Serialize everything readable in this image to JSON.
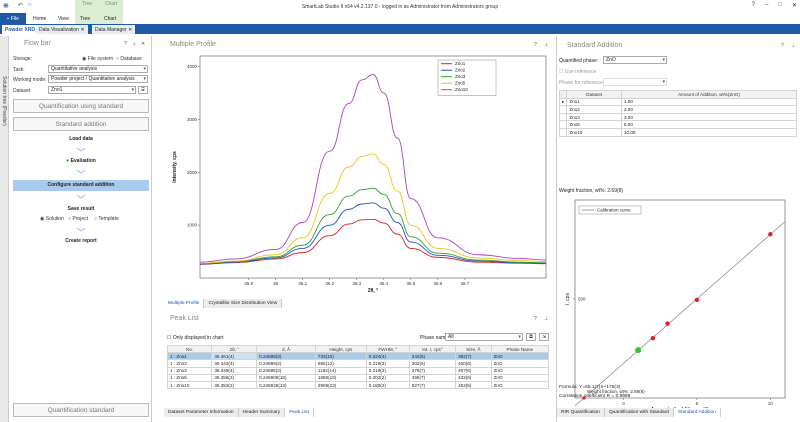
{
  "app": {
    "title": "SmartLab Studio II x64 v4.2.137.0 - logged in as Administrator from Administrators group"
  },
  "ribbon": {
    "file": "File",
    "tabs": [
      "Home",
      "View",
      "Tree",
      "Chart"
    ]
  },
  "doc_tabs": [
    "Powder XRD",
    "Data Visualization",
    "Data Manager"
  ],
  "sidebar_strip": {
    "label": "Solution tree (Powder)"
  },
  "flowbar": {
    "title": "Flow bar",
    "storage_label": "Storage:",
    "storage_options": [
      "File system",
      "Database"
    ],
    "task_label": "Task:",
    "task_value": "Quantitative analysis",
    "working_label": "Working mode:",
    "working_value": "Powder project / Quantitative analysis",
    "dataset_label": "Dataset",
    "dataset_value": "Zno1",
    "btn_quant_std": "Quantification using standard",
    "btn_std_add": "Standard addition",
    "steps": {
      "load": "Load data",
      "eval": "Evaluation",
      "config": "Configure standard addition",
      "save": "Save result",
      "save_options": [
        "Solution",
        "Project",
        "Template"
      ],
      "report": "Create report"
    },
    "btn_quant_standard": "Quantification standard"
  },
  "multi_profile": {
    "title": "Multiple Profile",
    "tabs": [
      "Multiple Profile",
      "Crystallite Size Distribution View"
    ]
  },
  "peak_list": {
    "title": "Peak List",
    "only_displayed": "Only displayed in chart",
    "phase_label": "Phase name:",
    "phase_value": "All",
    "columns": [
      "No.",
      "2θ, °",
      "d, Å",
      "Height, cps",
      "FWHM, °",
      "Int. I, cps°",
      "Size, Å",
      "Phase Name"
    ],
    "rows": [
      [
        "1 : Zno1",
        "36.361(4)",
        "0.24688(3)",
        "733(10)",
        "0.224(4)",
        "242(6)",
        "392(7)",
        "ZnO"
      ],
      [
        "1 : Zno2",
        "36.343(4)",
        "0.24699(2)",
        "955(12)",
        "0.218(3)",
        "302(6)",
        "400(6)",
        "ZnO"
      ],
      [
        "1 : Zno3",
        "36.349(4)",
        "0.24695(2)",
        "1192(14)",
        "0.219(3)",
        "376(7)",
        "407(6)",
        "ZnO"
      ],
      [
        "1 : Zno5",
        "36.356(2)",
        "0.246906(18)",
        "1680(16)",
        "0.202(2)",
        "496(7)",
        "432(6)",
        "ZnO"
      ],
      [
        "1 : Zno10",
        "36.353(2)",
        "0.246926(13)",
        "2906(22)",
        "0.180(2)",
        "827(7)",
        "452(5)",
        "ZnO"
      ]
    ],
    "bottom_tabs": [
      "Dataset Parameter Information",
      "Header Summary",
      "Peak List"
    ]
  },
  "standard_addition": {
    "title": "Standard Addition",
    "quantified_label": "Quantified phase:",
    "quantified_value": "ZnO",
    "use_reference": "Use reference",
    "phase_for_reference": "Phase for reference:",
    "columns": [
      "Dataset",
      "Amount of Addition, wt%(ZnO)"
    ],
    "rows": [
      [
        "Zno1",
        "1.00"
      ],
      [
        "Zno2",
        "2.00"
      ],
      [
        "Zno3",
        "3.00"
      ],
      [
        "Zno5",
        "5.00"
      ],
      [
        "Zno10",
        "10.00"
      ]
    ],
    "weight_fraction_top": "Weight fraction, wt%: 2.69(8)",
    "weight_fraction_point": "Weight fraction, wt%: 2.69(8)",
    "formula": "Formula: Y=65.1(7)X+175(3)",
    "correlation": "Correlation coefficient R = 0.9998",
    "bottom_tabs": [
      "RIR Quantification",
      "Quantification with Standard",
      "Standard Addition"
    ]
  },
  "chart_data": [
    {
      "type": "line",
      "title": "",
      "xlabel": "2θ, °",
      "ylabel": "Intensity, cps",
      "xlim": [
        35.72,
        37.0
      ],
      "ylim": [
        0,
        4200
      ],
      "x_ticks": [
        "35.9",
        "36",
        "36.1",
        "36.2",
        "36.3",
        "36.4",
        "36.5",
        "36.6",
        "36.7"
      ],
      "y_ticks": [
        "1000",
        "2000",
        "3000",
        "4000"
      ],
      "legend": "top-right",
      "x": [
        35.72,
        35.85,
        36.0,
        36.1,
        36.2,
        36.27,
        36.32,
        36.36,
        36.4,
        36.45,
        36.5,
        36.6,
        36.75,
        36.9,
        37.0
      ],
      "series": [
        {
          "name": "Zno1",
          "color": "#e02020",
          "values": [
            260,
            290,
            360,
            480,
            800,
            1020,
            1100,
            1110,
            1040,
            830,
            560,
            390,
            300,
            280,
            270
          ]
        },
        {
          "name": "Zno2",
          "color": "#2050d0",
          "values": [
            260,
            300,
            380,
            560,
            1000,
            1300,
            1400,
            1420,
            1320,
            1050,
            680,
            430,
            320,
            290,
            280
          ]
        },
        {
          "name": "Zno3",
          "color": "#30a030",
          "values": [
            270,
            310,
            400,
            620,
            1200,
            1550,
            1670,
            1700,
            1580,
            1220,
            780,
            470,
            340,
            300,
            290
          ]
        },
        {
          "name": "Zno5",
          "color": "#f0c020",
          "values": [
            280,
            320,
            440,
            760,
            1600,
            2100,
            2300,
            2350,
            2150,
            1650,
            1000,
            560,
            380,
            330,
            310
          ]
        },
        {
          "name": "Zno10",
          "color": "#b040c0",
          "values": [
            300,
            360,
            540,
            1050,
            2400,
            3300,
            3750,
            3850,
            3500,
            2650,
            1500,
            760,
            440,
            370,
            340
          ]
        }
      ]
    },
    {
      "type": "scatter",
      "title": "",
      "xlabel": "Amount of addition, wt%",
      "ylabel": "I, cps",
      "xlim": [
        -3.3,
        11
      ],
      "ylim": [
        0,
        1000
      ],
      "x_ticks": [
        "0",
        "5",
        "10"
      ],
      "y_ticks": [
        "500"
      ],
      "legend": "top-left",
      "series": [
        {
          "name": "Calibration curve",
          "type": "line",
          "color": "#888888",
          "x": [
            -3.3,
            11
          ],
          "y": [
            -40,
            891
          ]
        },
        {
          "name": "",
          "x": [
            1,
            2,
            3,
            5,
            10
          ],
          "y": [
            242,
            302,
            376,
            496,
            827
          ],
          "color": "#e02020"
        },
        {
          "name": "",
          "x": [
            -2.69
          ],
          "y": [
            0
          ],
          "color": "#e02020"
        },
        {
          "name": "",
          "x": [
            1
          ],
          "y": [
            242
          ],
          "color": "#30c030"
        }
      ]
    }
  ]
}
